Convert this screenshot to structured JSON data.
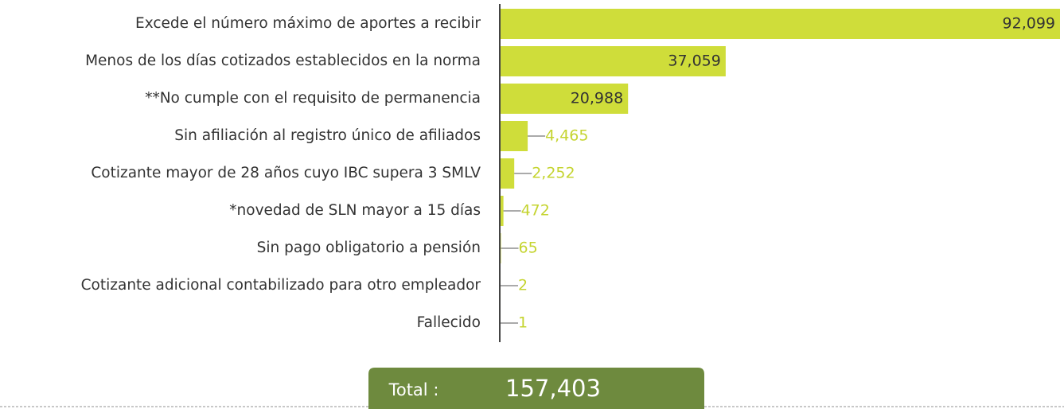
{
  "chart_data": {
    "type": "barh",
    "categories": [
      "Excede el número máximo de aportes a recibir",
      "Menos de los días cotizados establecidos en la norma",
      "**No cumple con el requisito de permanencia",
      "Sin afiliación al registro único de afiliados",
      "Cotizante mayor de 28 años cuyo IBC supera 3 SMLV",
      "*novedad de SLN mayor a 15 días",
      "Sin pago obligatorio a pensión",
      "Cotizante adicional contabilizado para otro empleador",
      "Fallecido"
    ],
    "values": [
      92099,
      37059,
      20988,
      4465,
      2252,
      472,
      65,
      2,
      1
    ],
    "value_labels": [
      "92,099",
      "37,059",
      "20,988",
      "4,465",
      "2,252",
      "472",
      "65",
      "2",
      "1"
    ],
    "color": "#cfdd3a",
    "total_label": "Total :",
    "total_value": "157,403"
  }
}
